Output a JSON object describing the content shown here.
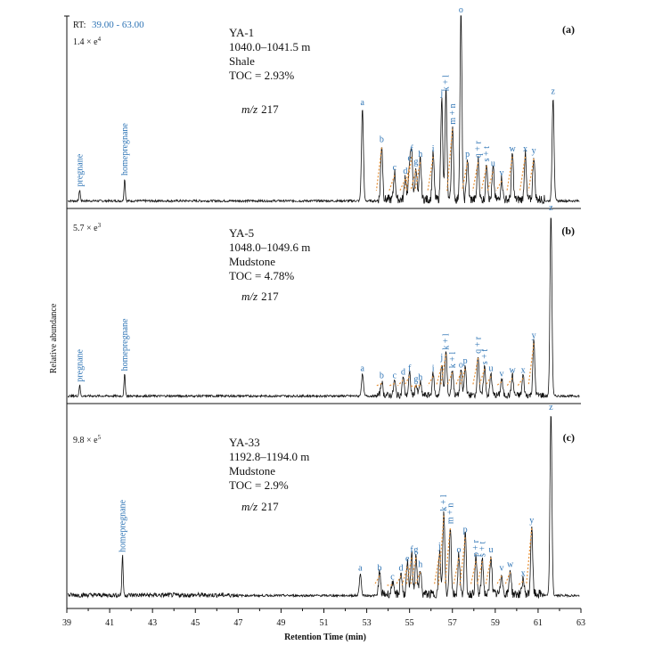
{
  "chart_data": {
    "type": "line",
    "title": "",
    "rt_prefix": "RT:",
    "rt_range": "39.00 - 63.00",
    "xlabel": "Retention Time (min)",
    "ylabel": "Relative abundance",
    "xlim": [
      39,
      63
    ],
    "x_ticks": [
      "39",
      "41",
      "43",
      "45",
      "47",
      "49",
      "51",
      "53",
      "55",
      "57",
      "59",
      "61",
      "63"
    ],
    "accent_color": "#2e74b5",
    "marker_color": "#e69138",
    "panels": [
      {
        "tag": "(a)",
        "scale": "1.4 × e",
        "scale_exp": "4",
        "sample": "YA-1",
        "depth": "1040.0–1041.5 m",
        "lithology": "Shale",
        "toc": "TOC = 2.93%",
        "mz_italic": "m/z",
        "mz_value": "217",
        "rotated_labels": [
          {
            "text": "pregnane",
            "x": 39.6,
            "y": 0.06
          },
          {
            "text": "homepregnane",
            "x": 41.7,
            "y": 0.12
          }
        ],
        "peaks": [
          {
            "label": "a",
            "x": 52.8,
            "y": 0.5
          },
          {
            "label": "b",
            "x": 53.7,
            "y": 0.3
          },
          {
            "label": "c",
            "x": 54.3,
            "y": 0.15
          },
          {
            "label": "d",
            "x": 54.8,
            "y": 0.13
          },
          {
            "label": "e",
            "x": 55.0,
            "y": 0.2
          },
          {
            "label": "f",
            "x": 55.1,
            "y": 0.25
          },
          {
            "label": "g",
            "x": 55.3,
            "y": 0.18
          },
          {
            "label": "h",
            "x": 55.5,
            "y": 0.22
          },
          {
            "label": "i",
            "x": 56.1,
            "y": 0.25
          },
          {
            "label": "j",
            "x": 56.5,
            "y": 0.55
          },
          {
            "label": "k + l",
            "x": 56.7,
            "y": 0.58
          },
          {
            "label": "m + n",
            "x": 57.0,
            "y": 0.4
          },
          {
            "label": "o",
            "x": 57.4,
            "y": 1.0
          },
          {
            "label": "p",
            "x": 57.7,
            "y": 0.22
          },
          {
            "label": "q + r",
            "x": 58.2,
            "y": 0.22
          },
          {
            "label": "s + t",
            "x": 58.6,
            "y": 0.2
          },
          {
            "label": "u",
            "x": 58.9,
            "y": 0.17
          },
          {
            "label": "v",
            "x": 59.3,
            "y": 0.12
          },
          {
            "label": "w",
            "x": 59.8,
            "y": 0.25
          },
          {
            "label": "x",
            "x": 60.4,
            "y": 0.25
          },
          {
            "label": "y",
            "x": 60.8,
            "y": 0.24
          },
          {
            "label": "z",
            "x": 61.7,
            "y": 0.56
          }
        ]
      },
      {
        "tag": "(b)",
        "scale": "5.7 × e",
        "scale_exp": "3",
        "sample": "YA-5",
        "depth": "1048.0–1049.6 m",
        "lithology": "Mudstone",
        "toc": "TOC = 4.78%",
        "mz_italic": "m/z",
        "mz_value": "217",
        "rotated_labels": [
          {
            "text": "pregnane",
            "x": 39.6,
            "y": 0.06
          },
          {
            "text": "homepregnane",
            "x": 41.7,
            "y": 0.12
          }
        ],
        "peaks": [
          {
            "label": "a",
            "x": 52.8,
            "y": 0.12
          },
          {
            "label": "b",
            "x": 53.7,
            "y": 0.08
          },
          {
            "label": "c",
            "x": 54.3,
            "y": 0.08
          },
          {
            "label": "d",
            "x": 54.7,
            "y": 0.1
          },
          {
            "label": "f",
            "x": 55.0,
            "y": 0.12
          },
          {
            "label": "g",
            "x": 55.3,
            "y": 0.06
          },
          {
            "label": "h",
            "x": 55.5,
            "y": 0.07
          },
          {
            "label": "i",
            "x": 56.1,
            "y": 0.12
          },
          {
            "label": "j",
            "x": 56.5,
            "y": 0.18
          },
          {
            "label": "k + l",
            "x": 56.7,
            "y": 0.24
          },
          {
            "label": "k + l",
            "x": 57.0,
            "y": 0.14
          },
          {
            "label": "o",
            "x": 57.4,
            "y": 0.14
          },
          {
            "label": "p",
            "x": 57.6,
            "y": 0.16
          },
          {
            "label": "q + r",
            "x": 58.2,
            "y": 0.22
          },
          {
            "label": "s + t",
            "x": 58.5,
            "y": 0.16
          },
          {
            "label": "u",
            "x": 58.8,
            "y": 0.12
          },
          {
            "label": "v",
            "x": 59.3,
            "y": 0.09
          },
          {
            "label": "w",
            "x": 59.8,
            "y": 0.11
          },
          {
            "label": "x",
            "x": 60.3,
            "y": 0.11
          },
          {
            "label": "y",
            "x": 60.8,
            "y": 0.3
          },
          {
            "label": "z",
            "x": 61.6,
            "y": 1.0
          }
        ]
      },
      {
        "tag": "(c)",
        "scale": "9.8 × e",
        "scale_exp": "5",
        "sample": "YA-33",
        "depth": "1192.8–1194.0 m",
        "lithology": "Mudstone",
        "toc": "TOC = 2.9%",
        "mz_italic": "m/z",
        "mz_value": "217",
        "rotated_labels": [
          {
            "text": "homepregnane",
            "x": 41.6,
            "y": 0.22
          }
        ],
        "peaks": [
          {
            "label": "a",
            "x": 52.7,
            "y": 0.12
          },
          {
            "label": "b",
            "x": 53.6,
            "y": 0.12
          },
          {
            "label": "c",
            "x": 54.2,
            "y": 0.07
          },
          {
            "label": "d",
            "x": 54.6,
            "y": 0.12
          },
          {
            "label": "e",
            "x": 54.9,
            "y": 0.17
          },
          {
            "label": "f",
            "x": 55.1,
            "y": 0.22
          },
          {
            "label": "g",
            "x": 55.3,
            "y": 0.22
          },
          {
            "label": "h",
            "x": 55.5,
            "y": 0.14
          },
          {
            "label": "j",
            "x": 56.4,
            "y": 0.24
          },
          {
            "label": "k + l",
            "x": 56.6,
            "y": 0.45
          },
          {
            "label": "m + n",
            "x": 56.9,
            "y": 0.38
          },
          {
            "label": "o",
            "x": 57.3,
            "y": 0.22
          },
          {
            "label": "p",
            "x": 57.6,
            "y": 0.33
          },
          {
            "label": "p + r",
            "x": 58.1,
            "y": 0.2
          },
          {
            "label": "s + t",
            "x": 58.4,
            "y": 0.2
          },
          {
            "label": "u",
            "x": 58.8,
            "y": 0.22
          },
          {
            "label": "v",
            "x": 59.3,
            "y": 0.12
          },
          {
            "label": "w",
            "x": 59.7,
            "y": 0.14
          },
          {
            "label": "x",
            "x": 60.3,
            "y": 0.09
          },
          {
            "label": "y",
            "x": 60.7,
            "y": 0.38
          },
          {
            "label": "z",
            "x": 61.6,
            "y": 1.0
          }
        ]
      }
    ]
  }
}
